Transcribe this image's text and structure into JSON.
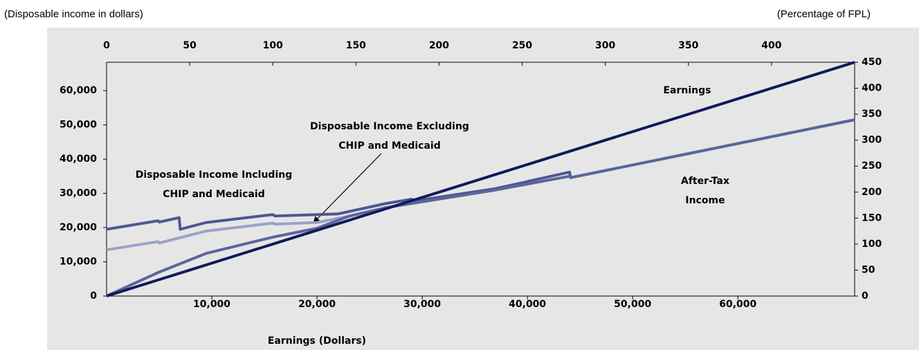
{
  "chart_data": {
    "type": "line",
    "y_label": "(Disposable income in dollars)",
    "y2_label": "(Percentage of FPL)",
    "x_label": "Earnings (Dollars)",
    "xlim": [
      0,
      71100
    ],
    "xticks": [
      {
        "value": 10000,
        "label": "10,000"
      },
      {
        "value": 20000,
        "label": "20,000"
      },
      {
        "value": 30000,
        "label": "30,000"
      },
      {
        "value": 40000,
        "label": "40,000"
      },
      {
        "value": 50000,
        "label": "50,000"
      },
      {
        "value": 60000,
        "label": "60,000"
      }
    ],
    "ylim": [
      0,
      68300
    ],
    "yticks": [
      0,
      {
        "value": 10000,
        "label": "10,000"
      },
      {
        "value": 20000,
        "label": "20,000"
      },
      {
        "value": 30000,
        "label": "30,000"
      },
      {
        "value": 40000,
        "label": "40,000"
      },
      {
        "value": 50000,
        "label": "50,000"
      },
      {
        "value": 60000,
        "label": "60,000"
      }
    ],
    "x2lim": [
      0,
      450
    ],
    "x2ticks": [
      0,
      50,
      100,
      150,
      200,
      250,
      300,
      350,
      400
    ],
    "y2lim": [
      0,
      450
    ],
    "y2ticks": [
      0,
      50,
      100,
      150,
      200,
      250,
      300,
      350,
      400,
      450
    ],
    "series": [
      {
        "label": [
          "Disposable Income Including",
          "CHIP and Medicaid"
        ],
        "color": "#4d5792",
        "x": [
          0,
          4900,
          5000,
          6900,
          7000,
          9500,
          15800,
          16000,
          22000,
          26500,
          29000,
          29300,
          37000,
          44000,
          44100,
          71100
        ],
        "values": [
          19500,
          22000,
          21600,
          22900,
          19500,
          21500,
          23800,
          23400,
          24000,
          27000,
          28300,
          27800,
          31400,
          36200,
          34600,
          51500
        ]
      },
      {
        "label": [
          "Disposable Income Excluding",
          "CHIP and Medicaid"
        ],
        "color": "#9aa2c8",
        "x": [
          0,
          4900,
          5000,
          9500,
          15800,
          16000,
          20000,
          23000
        ],
        "values": [
          13500,
          15900,
          15500,
          19000,
          21300,
          21000,
          21500,
          23300
        ]
      },
      {
        "label": [
          "After-Tax",
          "Income"
        ],
        "color": "#5c6599",
        "x": [
          0,
          5000,
          9500,
          15800,
          20000,
          23000,
          26500,
          37000,
          44000,
          44100,
          71100
        ],
        "values": [
          0,
          7000,
          12500,
          17200,
          19800,
          23300,
          25800,
          31000,
          35000,
          34600,
          51500
        ]
      },
      {
        "label": [
          "Earnings"
        ],
        "color": "#0f1a5c",
        "x": [
          0,
          71100
        ],
        "values": [
          0,
          68300
        ]
      }
    ]
  }
}
